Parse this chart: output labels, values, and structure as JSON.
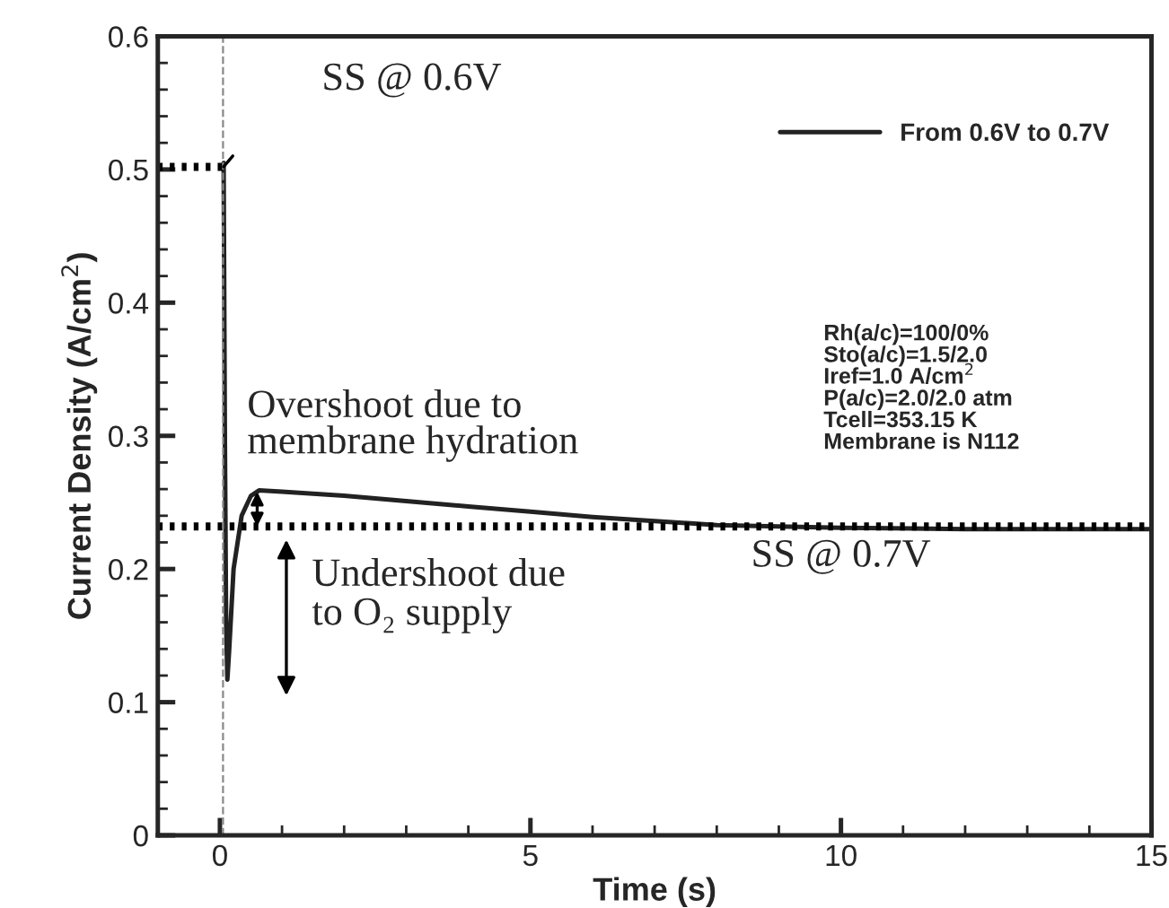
{
  "chart_data": {
    "type": "line",
    "xlabel": "Time (s)",
    "ylabel": "Current Density (A/cm$^{2}$)",
    "xlim": [
      -1,
      15
    ],
    "ylim": [
      0,
      0.6
    ],
    "xticks": [
      0,
      5,
      10,
      15
    ],
    "yticks": [
      0,
      0.1,
      0.2,
      0.3,
      0.4,
      0.5,
      0.6
    ],
    "grid": false,
    "legend": "top right",
    "marker": "none",
    "series": [
      {
        "name": "From 0.6V to 0.7V",
        "color": "#222222",
        "line_style": "solid",
        "x": [
          0.06,
          0.08,
          0.1,
          0.12,
          0.15,
          0.22,
          0.35,
          0.5,
          0.63,
          1,
          2,
          3,
          4,
          5,
          6,
          7,
          8,
          10,
          12,
          15
        ],
        "values": [
          0.505,
          0.3,
          0.16,
          0.117,
          0.14,
          0.2,
          0.24,
          0.255,
          0.259,
          0.258,
          0.255,
          0.251,
          0.247,
          0.243,
          0.239,
          0.236,
          0.233,
          0.231,
          0.23,
          0.23
        ]
      },
      {
        "color": "#000000",
        "line_style": "dotted",
        "x": [
          -1,
          0.06
        ],
        "values": [
          0.502,
          0.502
        ]
      },
      {
        "color": "#000000",
        "line_style": "dotted",
        "x": [
          -1,
          15
        ],
        "values": [
          0.232,
          0.232
        ]
      }
    ],
    "ref_lines": [
      {
        "axis": "x",
        "value": 0.05,
        "color": "#888888",
        "line_style": "dashed"
      }
    ],
    "annotations": [
      "SS @ 0.6V",
      {
        "text": "Overshoot due to\nmembrane hydration",
        "x": 0.6,
        "y": 0.258
      },
      "Undershoot due\nto O₂ supply",
      {
        "text": "SS @ 0.7V",
        "x": 10,
        "y": 0.232
      },
      "Rh(a/c)=100/0%\nSto(a/c)=1.5/2.0\nIref=1.0 A/cm$^{2}$\nP(a/c)=2.0/2.0 atm\nTcell=353.15 K\nMembrane is N112"
    ]
  }
}
